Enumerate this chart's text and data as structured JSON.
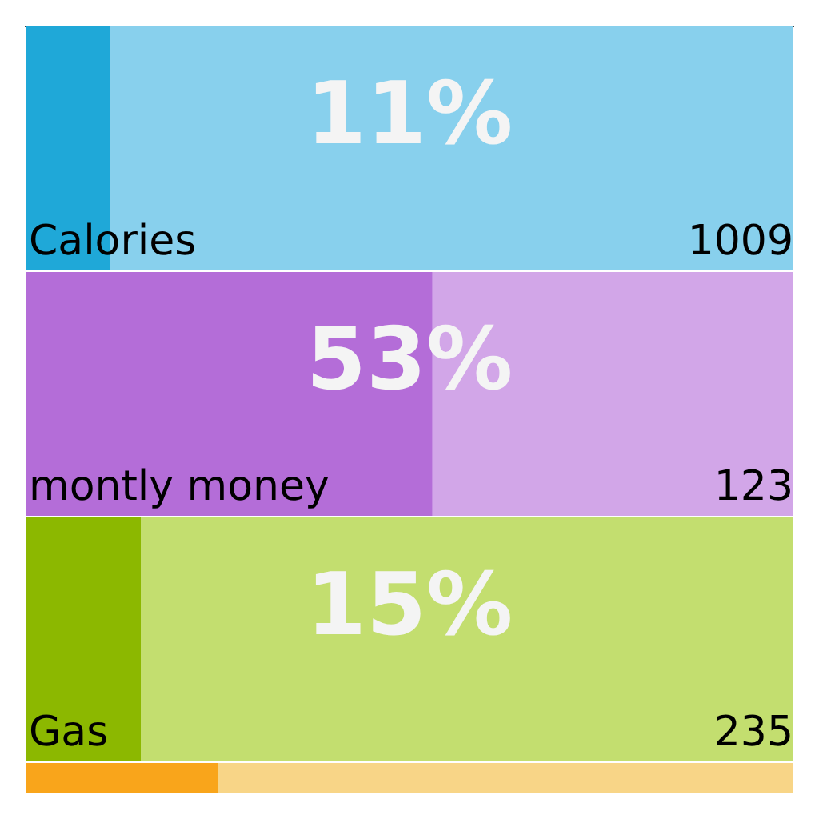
{
  "chart_data": {
    "type": "bar",
    "orientation": "horizontal",
    "stacked": true,
    "categories": [
      "Calories",
      "montly money",
      "Gas",
      null
    ],
    "series": [
      {
        "values": [
          11,
          53,
          15,
          25
        ],
        "colors": [
          "#1fa8d8",
          "#b46dd8",
          "#8cb800",
          "#f9a51b"
        ],
        "value_labels": [
          "11%",
          "53%",
          "15%",
          null
        ]
      },
      {
        "values": [
          89,
          47,
          85,
          75
        ],
        "colors": [
          "#88d0ed",
          "#d2a6e8",
          "#c3de6f",
          "#f8d587"
        ]
      }
    ],
    "xlim": [
      0,
      100
    ],
    "tick_labels": false,
    "grid": false,
    "annotations": [
      "1009",
      "123",
      "235"
    ]
  }
}
